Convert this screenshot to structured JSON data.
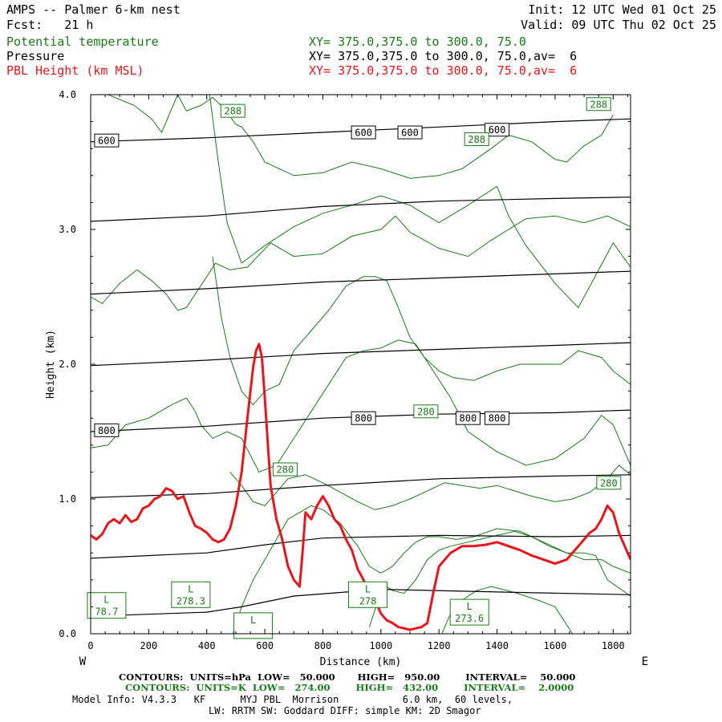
{
  "header": {
    "title": "AMPS -- Palmer 6-km nest",
    "fcst": "Fcst:   21 h",
    "init": "Init: 12 UTC Wed 01 Oct 25",
    "valid": "Valid: 09 UTC Thu 02 Oct 25",
    "field1": "Potential temperature",
    "field2": "Pressure",
    "field3": "PBL Height (km MSL)",
    "xy1": "XY= 375.0,375.0 to 300.0, 75.0",
    "xy2": "XY= 375.0,375.0 to 300.0, 75.0,av=  6",
    "xy3": "XY= 375.0,375.0 to 300.0, 75.0,av=  6"
  },
  "footer": {
    "line1": "CONTOURS:  UNITS=hPa  LOW=   50.000       HIGH=   950.00        INTERVAL=    50.000",
    "line2": "CONTOURS:  UNITS=K  LOW=   274.00        HIGH=   432.00        INTERVAL=    2.0000",
    "line3": "Model Info: V4.3.3   KF      MYJ PBL  Morrison           6.0 km,  60 levels,",
    "line4": "LW: RRTM SW: Goddard DIFF: simple KM: 2D Smagor"
  },
  "colors": {
    "pressure": "#000000",
    "theta": "#1a7a1a",
    "pbl": "#e8161b"
  },
  "chart_data": {
    "type": "line",
    "xlabel": "Distance (km)",
    "ylabel": "Height (km)",
    "xlim": [
      0,
      1860
    ],
    "ylim": [
      0,
      4.0
    ],
    "xticks": [
      "0",
      "200",
      "400",
      "600",
      "800",
      "1000",
      "1200",
      "1400",
      "1600",
      "1800"
    ],
    "xtick_values": [
      0,
      200,
      400,
      600,
      800,
      1000,
      1200,
      1400,
      1600,
      1800
    ],
    "yticks": [
      "0.0",
      "1.0",
      "2.0",
      "3.0",
      "4.0"
    ],
    "ytick_values": [
      0,
      1,
      2,
      3,
      4
    ],
    "west_label": "W",
    "east_label": "E",
    "pressure_series": [
      {
        "x": [
          0,
          400,
          800,
          1200,
          1600,
          1860
        ],
        "y": [
          3.65,
          3.68,
          3.72,
          3.76,
          3.8,
          3.82
        ]
      },
      {
        "x": [
          0,
          400,
          800,
          1200,
          1600,
          1860
        ],
        "y": [
          3.06,
          3.1,
          3.17,
          3.21,
          3.23,
          3.24
        ]
      },
      {
        "x": [
          0,
          400,
          800,
          1200,
          1600,
          1860
        ],
        "y": [
          2.52,
          2.56,
          2.61,
          2.64,
          2.67,
          2.69
        ]
      },
      {
        "x": [
          0,
          400,
          800,
          1200,
          1600,
          1860
        ],
        "y": [
          1.99,
          2.03,
          2.08,
          2.11,
          2.14,
          2.16
        ]
      },
      {
        "x": [
          0,
          400,
          800,
          1200,
          1600,
          1860
        ],
        "y": [
          1.5,
          1.54,
          1.6,
          1.63,
          1.64,
          1.66
        ]
      },
      {
        "x": [
          0,
          400,
          800,
          1200,
          1600,
          1860
        ],
        "y": [
          1.01,
          1.04,
          1.1,
          1.15,
          1.17,
          1.18
        ]
      },
      {
        "x": [
          0,
          400,
          600,
          800,
          1200,
          1600,
          1860
        ],
        "y": [
          0.56,
          0.6,
          0.66,
          0.71,
          0.73,
          0.72,
          0.73
        ]
      },
      {
        "x": [
          0,
          400,
          520,
          700,
          1000,
          1400,
          1860
        ],
        "y": [
          0.13,
          0.16,
          0.2,
          0.28,
          0.33,
          0.31,
          0.29
        ]
      }
    ],
    "pressure_labels": [
      {
        "text": "600",
        "x": 55,
        "y": 3.66
      },
      {
        "text": "600",
        "x": 940,
        "y": 3.72
      },
      {
        "text": "600",
        "x": 1100,
        "y": 3.72
      },
      {
        "text": "600",
        "x": 1400,
        "y": 3.74
      },
      {
        "text": "800",
        "x": 55,
        "y": 1.51
      },
      {
        "text": "800",
        "x": 940,
        "y": 1.6
      },
      {
        "text": "800",
        "x": 1300,
        "y": 1.6
      },
      {
        "text": "800",
        "x": 1400,
        "y": 1.6
      }
    ],
    "theta_series": [
      {
        "x": [
          60,
          150,
          210,
          245,
          280,
          300,
          330,
          380,
          420,
          460,
          500,
          520,
          560,
          600,
          700,
          800,
          900,
          1000,
          1100,
          1200,
          1280,
          1380,
          1440,
          1520,
          1600,
          1640,
          1700,
          1760,
          1800
        ],
        "y": [
          4.0,
          3.92,
          3.82,
          3.72,
          3.9,
          4.0,
          3.88,
          3.92,
          3.98,
          3.9,
          3.78,
          3.76,
          3.65,
          3.5,
          3.4,
          3.42,
          3.5,
          3.45,
          3.38,
          3.4,
          3.45,
          3.6,
          3.7,
          3.65,
          3.52,
          3.5,
          3.62,
          3.7,
          3.85
        ]
      },
      {
        "x": [
          410,
          440,
          470,
          520,
          600,
          700,
          800,
          900,
          1000,
          1100,
          1200,
          1300,
          1400,
          1440,
          1500,
          1600,
          1680,
          1750,
          1800,
          1860
        ],
        "y": [
          4.0,
          3.5,
          3.05,
          2.75,
          2.88,
          3.02,
          3.12,
          3.18,
          3.25,
          3.18,
          3.05,
          3.18,
          3.32,
          3.1,
          2.88,
          2.6,
          2.42,
          2.7,
          2.9,
          2.72
        ]
      },
      {
        "x": [
          0,
          40,
          100,
          160,
          210,
          260,
          300,
          330,
          400,
          430,
          480,
          540,
          620,
          700,
          800,
          900,
          1000,
          1050,
          1100,
          1200,
          1300,
          1380,
          1440,
          1500,
          1600,
          1700,
          1780,
          1860
        ],
        "y": [
          2.5,
          2.45,
          2.6,
          2.7,
          2.62,
          2.52,
          2.4,
          2.42,
          2.65,
          2.75,
          2.7,
          2.72,
          2.9,
          2.8,
          2.82,
          2.95,
          3.0,
          3.1,
          2.98,
          2.86,
          2.8,
          2.92,
          3.0,
          3.08,
          3.1,
          3.05,
          3.1,
          3.02
        ]
      },
      {
        "x": [
          420,
          450,
          480,
          520,
          560,
          600,
          650,
          700,
          760,
          820,
          880,
          940,
          980,
          1020,
          1060,
          1100,
          1150,
          1200,
          1250,
          1320,
          1400,
          1480,
          1560,
          1620,
          1680,
          1760,
          1800,
          1860
        ],
        "y": [
          2.8,
          2.35,
          2.05,
          1.8,
          1.7,
          1.8,
          1.85,
          2.1,
          2.25,
          2.4,
          2.58,
          2.65,
          2.65,
          2.62,
          2.42,
          2.2,
          2.05,
          1.95,
          1.9,
          1.88,
          1.95,
          2.0,
          2.0,
          2.0,
          2.1,
          2.05,
          1.95,
          1.85
        ]
      },
      {
        "x": [
          0,
          60,
          120,
          200,
          280,
          330,
          360,
          380,
          420,
          470,
          520,
          580,
          640,
          700,
          760,
          820,
          880,
          940,
          1000,
          1060,
          1120,
          1180,
          1240,
          1300,
          1400,
          1500,
          1600,
          1700,
          1760,
          1800,
          1860
        ],
        "y": [
          1.38,
          1.4,
          1.55,
          1.6,
          1.7,
          1.75,
          1.65,
          1.55,
          1.45,
          1.5,
          1.45,
          1.2,
          1.25,
          1.45,
          1.65,
          1.85,
          2.05,
          2.1,
          2.12,
          2.18,
          2.15,
          1.95,
          1.75,
          1.5,
          1.35,
          1.25,
          1.3,
          1.45,
          1.62,
          1.55,
          1.25
        ]
      },
      {
        "x": [
          480,
          520,
          560,
          600,
          640,
          680,
          740,
          800,
          860,
          920,
          980,
          1040,
          1100,
          1160,
          1220,
          1280,
          1340,
          1400,
          1460,
          1520,
          1600,
          1660,
          1720,
          1780,
          1820,
          1860
        ],
        "y": [
          1.2,
          1.1,
          0.98,
          0.95,
          1.05,
          1.15,
          1.18,
          1.12,
          1.05,
          0.98,
          0.92,
          0.95,
          1.0,
          1.06,
          1.12,
          1.1,
          1.08,
          1.1,
          1.06,
          1.02,
          0.98,
          1.0,
          1.05,
          1.15,
          1.25,
          1.18
        ]
      },
      {
        "x": [
          490,
          520,
          560,
          600,
          640,
          680,
          720,
          760,
          800,
          860,
          920,
          960,
          1000,
          1040,
          1080,
          1120,
          1160,
          1200,
          1260,
          1320,
          1400,
          1480,
          1560,
          1640,
          1700,
          1760,
          1800,
          1860
        ],
        "y": [
          0.0,
          0.2,
          0.4,
          0.55,
          0.7,
          0.85,
          0.9,
          0.95,
          0.92,
          0.82,
          0.65,
          0.5,
          0.45,
          0.5,
          0.6,
          0.68,
          0.72,
          0.72,
          0.7,
          0.72,
          0.78,
          0.76,
          0.68,
          0.6,
          0.55,
          0.55,
          0.5,
          0.45
        ]
      },
      {
        "x": [
          960,
          980,
          1000,
          1020,
          1040,
          1080,
          1120,
          1160,
          1200,
          1240,
          1300,
          1340,
          1380,
          1420,
          1460,
          1520,
          1580,
          1640,
          1700,
          1740,
          1780,
          1860
        ],
        "y": [
          0.05,
          0.18,
          0.33,
          0.35,
          0.32,
          0.3,
          0.4,
          0.55,
          0.62,
          0.65,
          0.68,
          0.7,
          0.72,
          0.74,
          0.76,
          0.72,
          0.65,
          0.6,
          0.6,
          0.58,
          0.4,
          0.28
        ]
      },
      {
        "x": [
          1210,
          1240,
          1280,
          1330,
          1380,
          1420,
          1470,
          1540,
          1600,
          1660
        ],
        "y": [
          0.0,
          0.15,
          0.25,
          0.32,
          0.35,
          0.33,
          0.3,
          0.25,
          0.2,
          0.0
        ]
      }
    ],
    "theta_labels": [
      {
        "text": "288",
        "x": 490,
        "y": 3.88
      },
      {
        "text": "288",
        "x": 1330,
        "y": 3.67
      },
      {
        "text": "288",
        "x": 1750,
        "y": 3.93
      },
      {
        "text": "280",
        "x": 670,
        "y": 1.22
      },
      {
        "text": "280",
        "x": 1155,
        "y": 1.65
      },
      {
        "text": "280",
        "x": 1785,
        "y": 1.12
      }
    ],
    "theta_min_labels": [
      {
        "L": "L",
        "value": "78.7",
        "x": 55,
        "y": 0.21
      },
      {
        "L": "L",
        "value": "278.3",
        "x": 345,
        "y": 0.29
      },
      {
        "L": "L",
        "value": "",
        "x": 560,
        "y": 0.06
      },
      {
        "L": "L",
        "value": "278",
        "x": 955,
        "y": 0.29
      },
      {
        "L": "L",
        "value": "273.6",
        "x": 1305,
        "y": 0.16
      }
    ],
    "pbl_series": {
      "name": "PBL Height (km MSL)",
      "x": [
        0,
        20,
        40,
        60,
        80,
        100,
        120,
        140,
        160,
        180,
        200,
        220,
        240,
        260,
        280,
        300,
        320,
        340,
        360,
        380,
        400,
        420,
        440,
        460,
        480,
        500,
        520,
        540,
        560,
        570,
        580,
        590,
        600,
        620,
        640,
        660,
        680,
        700,
        720,
        730,
        740,
        760,
        780,
        800,
        820,
        840,
        860,
        880,
        900,
        920,
        940,
        960,
        980,
        1000,
        1020,
        1040,
        1060,
        1080,
        1100,
        1120,
        1140,
        1160,
        1180,
        1200,
        1240,
        1280,
        1320,
        1360,
        1400,
        1440,
        1480,
        1520,
        1560,
        1600,
        1640,
        1680,
        1720,
        1740,
        1760,
        1780,
        1800,
        1820,
        1860
      ],
      "y": [
        0.73,
        0.7,
        0.74,
        0.82,
        0.85,
        0.82,
        0.88,
        0.83,
        0.85,
        0.93,
        0.95,
        1.0,
        1.02,
        1.08,
        1.06,
        1.0,
        1.02,
        0.9,
        0.8,
        0.78,
        0.75,
        0.7,
        0.68,
        0.7,
        0.78,
        0.95,
        1.2,
        1.6,
        1.98,
        2.1,
        2.15,
        2.05,
        1.75,
        1.1,
        0.85,
        0.7,
        0.5,
        0.4,
        0.35,
        0.6,
        0.9,
        0.85,
        0.95,
        1.02,
        0.95,
        0.85,
        0.8,
        0.7,
        0.62,
        0.48,
        0.4,
        0.3,
        0.25,
        0.15,
        0.1,
        0.08,
        0.05,
        0.04,
        0.03,
        0.04,
        0.05,
        0.08,
        0.3,
        0.5,
        0.6,
        0.65,
        0.65,
        0.66,
        0.68,
        0.65,
        0.62,
        0.58,
        0.55,
        0.52,
        0.55,
        0.65,
        0.75,
        0.78,
        0.85,
        0.95,
        0.9,
        0.75,
        0.55
      ]
    }
  }
}
